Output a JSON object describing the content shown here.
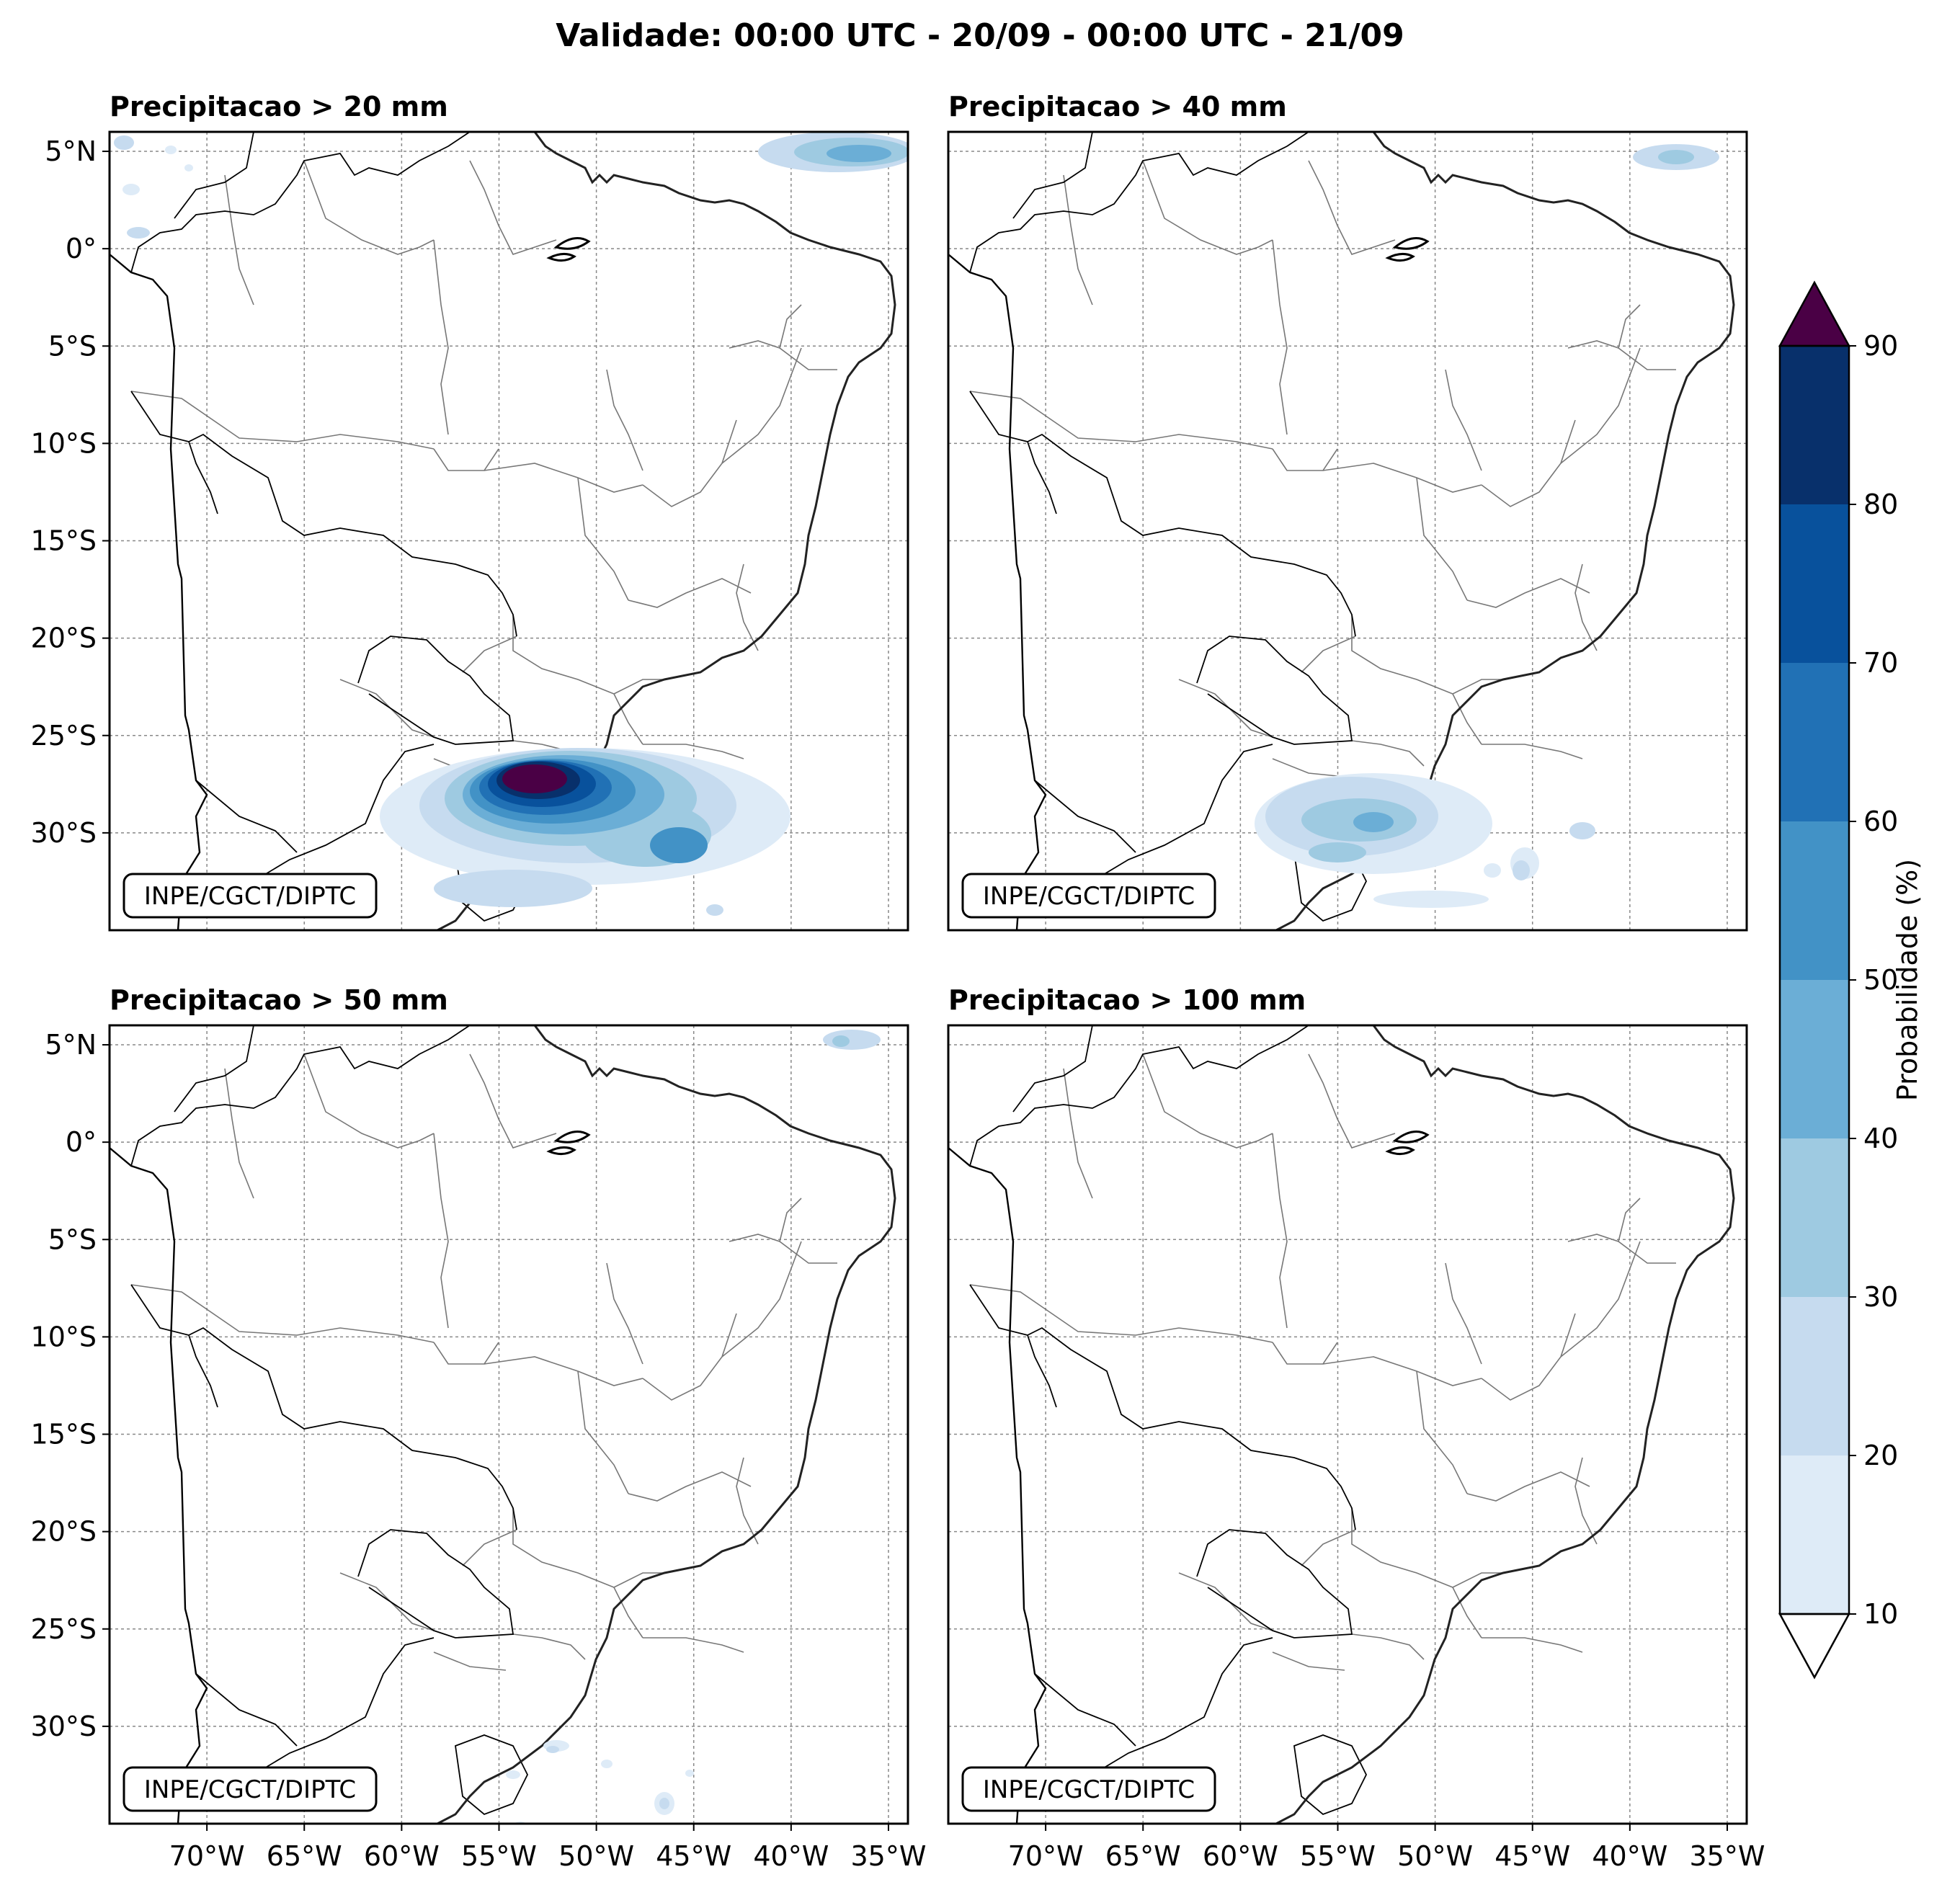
{
  "figure": {
    "title": "Validade: 00:00 UTC - 20/09 - 00:00 UTC - 21/09",
    "credit": "INPE/CGCT/DIPTC"
  },
  "axes": {
    "lon_ticks": [
      -70,
      -65,
      -60,
      -55,
      -50,
      -45,
      -40,
      -35
    ],
    "lon_labels": [
      "70°W",
      "65°W",
      "60°W",
      "55°W",
      "50°W",
      "45°W",
      "40°W",
      "35°W"
    ],
    "lat_ticks": [
      5,
      0,
      -5,
      -10,
      -15,
      -20,
      -25,
      -30
    ],
    "lat_labels": [
      "5°N",
      "0°",
      "5°S",
      "10°S",
      "15°S",
      "20°S",
      "25°S",
      "30°S"
    ],
    "lon_range": [
      -75,
      -34
    ],
    "lat_range": [
      -35,
      6
    ],
    "grid": true
  },
  "panels": [
    {
      "id": "p20",
      "title": "Precipitacao > 20 mm"
    },
    {
      "id": "p40",
      "title": "Precipitacao > 40 mm"
    },
    {
      "id": "p50",
      "title": "Precipitacao > 50 mm"
    },
    {
      "id": "p100",
      "title": "Precipitacao > 100 mm"
    }
  ],
  "colorbar": {
    "label": "Probabilidade (%)",
    "levels": [
      10,
      20,
      30,
      40,
      50,
      60,
      70,
      80,
      90
    ],
    "level_labels": [
      "10",
      "20",
      "30",
      "40",
      "50",
      "60",
      "70",
      "80",
      "90"
    ],
    "colors": [
      "#deebf7",
      "#c6dbef",
      "#9ecae1",
      "#6baed6",
      "#4292c6",
      "#2171b5",
      "#08519c",
      "#08306b"
    ],
    "over_color": "#4a0045",
    "under_color": "#ffffff",
    "extend": "both"
  }
}
